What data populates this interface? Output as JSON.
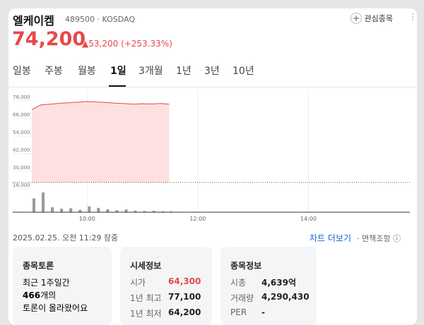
{
  "header": {
    "name": "엘케이켐",
    "code": "489500",
    "market": "KOSDAQ",
    "watch": "관심종목",
    "price": "74,200",
    "change": "53,200",
    "change_pct": "(+253.33%)"
  },
  "tabs": [
    "일봉",
    "주봉",
    "월봉",
    "1일",
    "3개월",
    "1년",
    "3년",
    "10년"
  ],
  "chart_data": {
    "type": "line",
    "color": "#e8484a",
    "area_color": "#fde0e0",
    "x": [
      "09:00",
      "09:10",
      "09:20",
      "09:30",
      "09:40",
      "09:50",
      "10:00",
      "10:10",
      "10:20",
      "10:30",
      "10:40",
      "10:50",
      "11:00",
      "11:10",
      "11:20",
      "11:29"
    ],
    "series": [
      {
        "name": "가격",
        "values": [
          70600,
          73800,
          74300,
          74900,
          75200,
          75600,
          76100,
          75800,
          75400,
          75000,
          74700,
          74300,
          74600,
          74400,
          74800,
          74200
        ]
      },
      {
        "name": "거래량",
        "axis": "y2",
        "color": "#999999",
        "values": [
          70,
          100,
          25,
          18,
          20,
          12,
          30,
          22,
          15,
          10,
          14,
          8,
          6,
          7,
          5,
          4
        ]
      }
    ],
    "baseline": 21000,
    "xlim": [
      "09:00",
      "15:50"
    ],
    "xticks": [
      "10:00",
      "12:00",
      "14:00"
    ],
    "ylim": [
      18000,
      78000
    ],
    "yticks": [
      {
        "value": 18000,
        "label": "18,000"
      },
      {
        "value": 30000,
        "label": "30,000"
      },
      {
        "value": 42000,
        "label": "42,000"
      },
      {
        "value": 54000,
        "label": "54,000"
      },
      {
        "value": 66000,
        "label": "66,000"
      },
      {
        "value": 78000,
        "label": "78,000"
      }
    ],
    "y2lim": [
      0,
      100
    ]
  },
  "footer": {
    "timestamp": "2025.02.25. 오전 11:29 장중",
    "more": "차트 더보기",
    "disclaimer": "면책조항"
  },
  "cards": [
    {
      "title": "종목토론",
      "lines": [
        "최근 1주일간",
        "466",
        "개의",
        "토론이 올라왔어요"
      ]
    },
    {
      "title": "시세정보",
      "rows": [
        [
          "시가",
          "64,300"
        ],
        [
          "1년 최고",
          "77,100"
        ],
        [
          "1년 최저",
          "64,200"
        ]
      ]
    },
    {
      "title": "종목정보",
      "rows": [
        [
          "시총",
          "4,639억"
        ],
        [
          "거래량",
          "4,290,430"
        ],
        [
          "PER",
          "-"
        ]
      ]
    }
  ]
}
